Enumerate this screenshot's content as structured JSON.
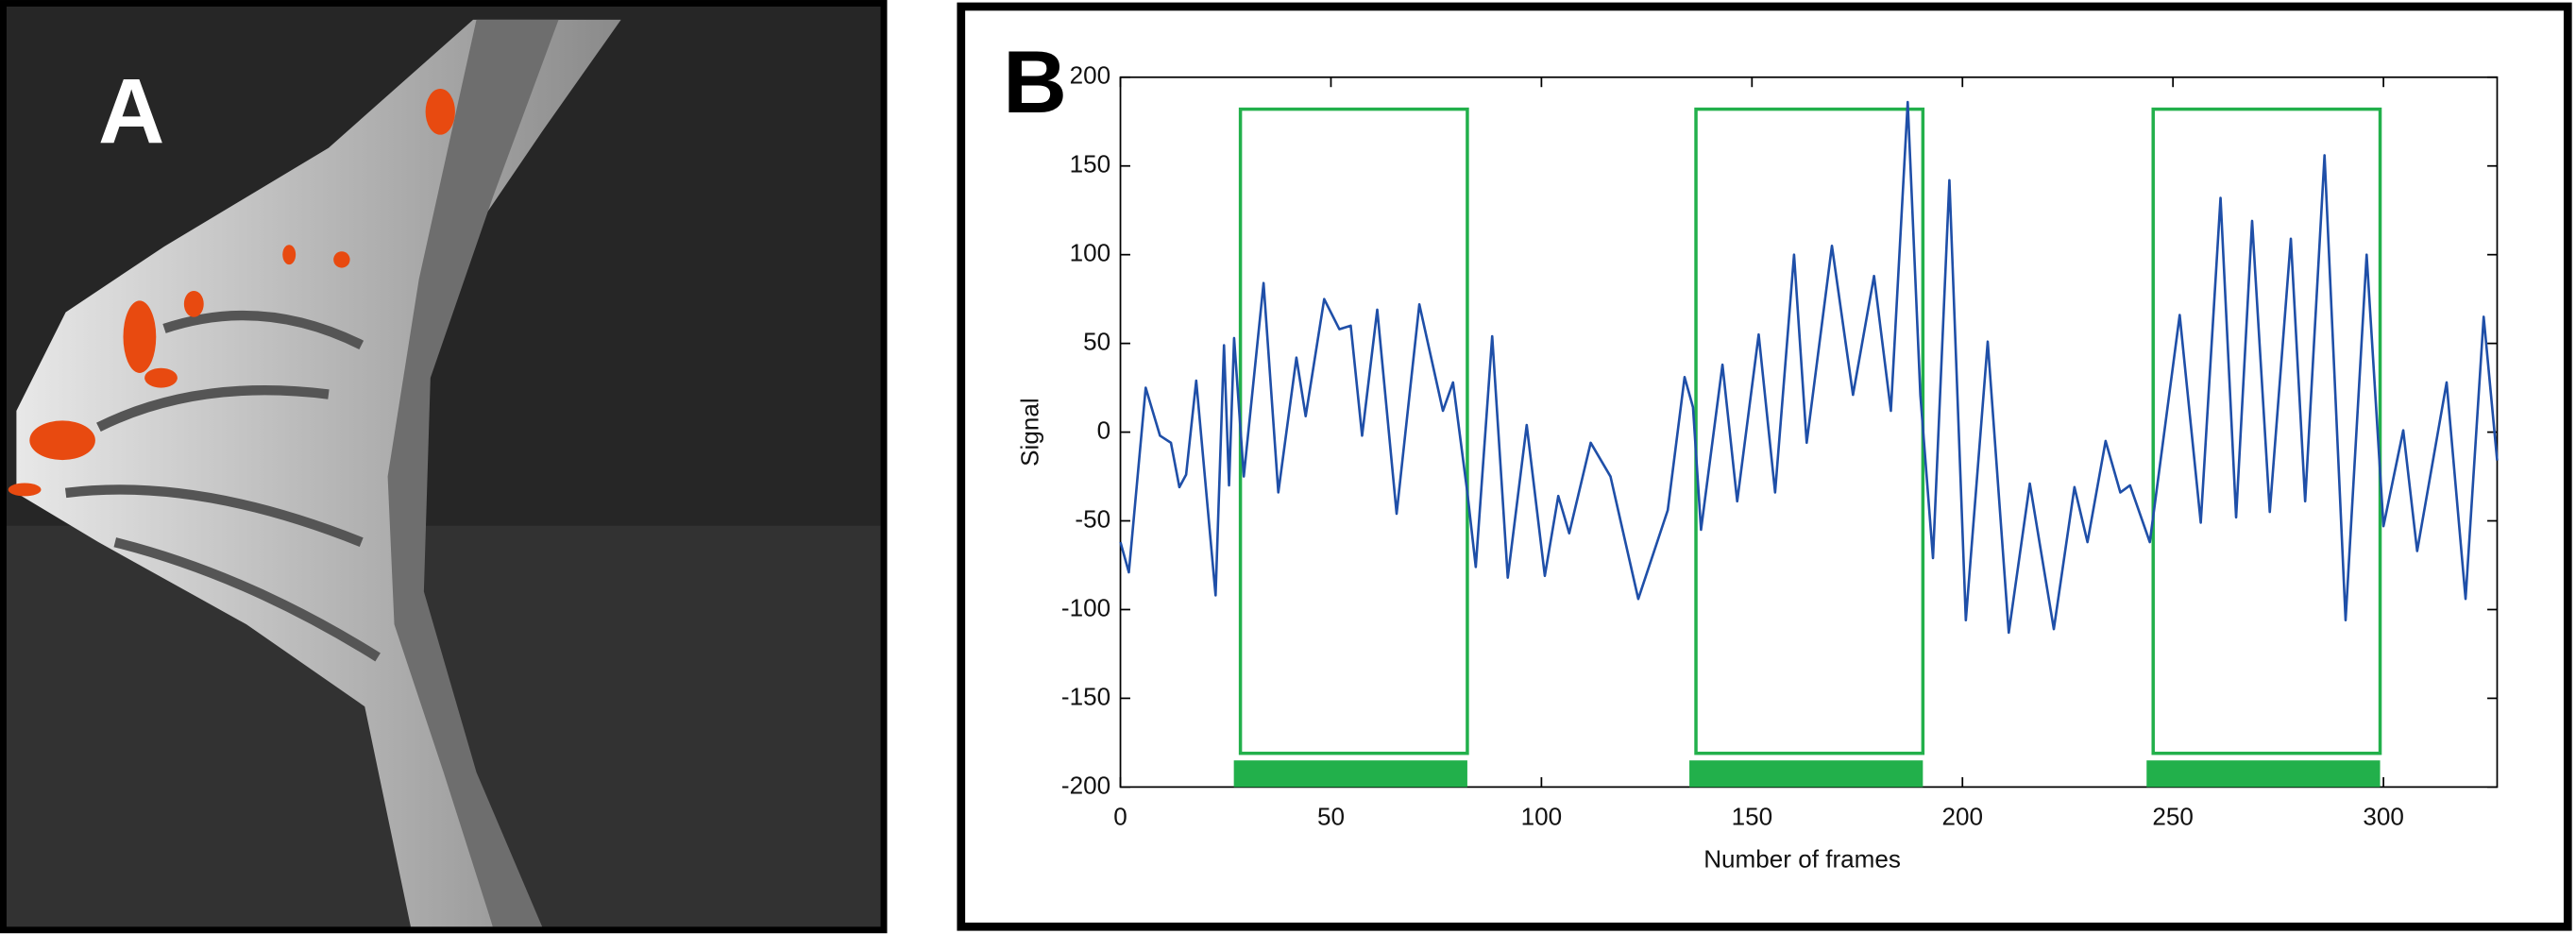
{
  "panels": [
    "A",
    "B"
  ],
  "chart_data": {
    "type": "line",
    "xlabel": "Number of frames",
    "ylabel": "Signal",
    "color": "#1f4fa8",
    "x": [
      0,
      2,
      6,
      9.4,
      12,
      14,
      15.6,
      18,
      22.6,
      24.6,
      25.8,
      27,
      29.3,
      34,
      37.5,
      41.8,
      44,
      48.4,
      52,
      54.7,
      57.4,
      61,
      65.6,
      71,
      76.6,
      79,
      82.4,
      84.4,
      88.3,
      92,
      96.5,
      100.8,
      104,
      106.6,
      111.7,
      116.4,
      123,
      130,
      134,
      136,
      137.9,
      143,
      146.5,
      151.6,
      155.5,
      160,
      163,
      169,
      174,
      179,
      183,
      187,
      190,
      193,
      196.9,
      200.8,
      206,
      211,
      216,
      221.7,
      226.6,
      229.7,
      234,
      237.5,
      239.8,
      244.5,
      251.6,
      256.6,
      261.3,
      265,
      268.8,
      273,
      278,
      281.4,
      286,
      291,
      296,
      300,
      304.7,
      308,
      315,
      319.5,
      323.8,
      327
    ],
    "values": [
      -62,
      -79,
      25,
      -2,
      -6,
      -31,
      -24,
      29,
      -92,
      49,
      -30,
      53,
      -25,
      84,
      -34,
      42,
      9,
      75,
      58,
      60,
      -2,
      69,
      -46,
      72,
      12,
      28,
      -34,
      -76,
      54,
      -82,
      4,
      -81,
      -36,
      -57,
      -6,
      -25,
      -94,
      -44,
      31,
      14,
      -55,
      38,
      -39,
      55,
      -34,
      100,
      -6,
      105,
      21,
      88,
      12,
      186,
      21,
      -71,
      142,
      -106,
      51,
      -113,
      -29,
      -111,
      -31,
      -62,
      -5,
      -34,
      -30,
      -62,
      66,
      -51,
      132,
      -48,
      119,
      -45,
      109,
      -39,
      156,
      -106,
      100,
      -53,
      1,
      -67,
      28,
      -94,
      65,
      -16
    ],
    "blocks": [
      {
        "start": 28.5,
        "end": 82.4
      },
      {
        "start": 136.7,
        "end": 190.6
      },
      {
        "start": 245.3,
        "end": 299.2
      }
    ],
    "block_color": "#22b04b",
    "block_range": [
      -181,
      182
    ],
    "bar_range": [
      -200,
      -185
    ],
    "xlim": [
      0,
      327
    ],
    "xticks": [
      0,
      50,
      100,
      150,
      200,
      250,
      300
    ],
    "ylim": [
      -200,
      200
    ],
    "yticks": [
      -200,
      -150,
      -100,
      -50,
      0,
      50,
      100,
      150,
      200
    ]
  }
}
